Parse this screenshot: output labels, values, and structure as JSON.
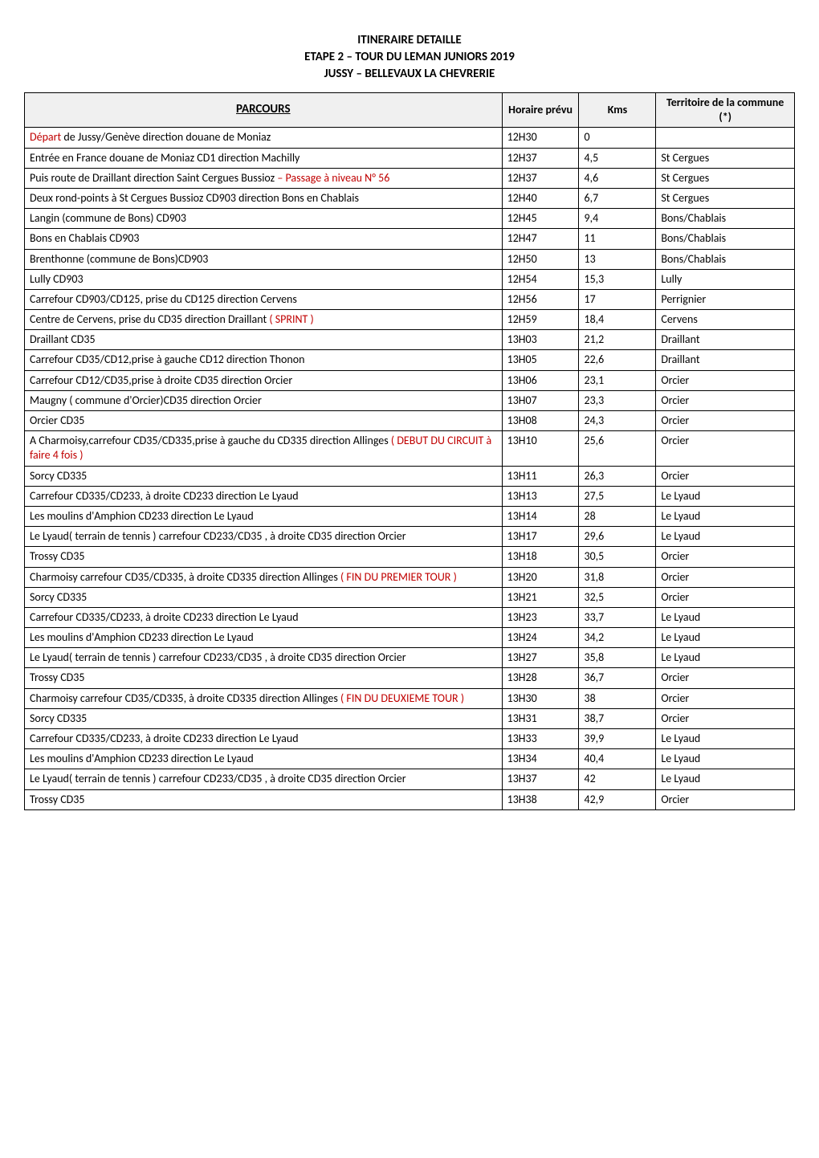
{
  "header": {
    "line1": "ITINERAIRE  DETAILLE",
    "line2": "ETAPE 2 – TOUR DU LEMAN JUNIORS 2019",
    "line3": "JUSSY – BELLEVAUX LA CHEVRERIE"
  },
  "columns": {
    "parcours": "PARCOURS",
    "horaire": "Horaire prévu",
    "kms": "Kms",
    "commune": "Territoire de la commune (*)"
  },
  "rows": [
    {
      "parcours_pre": "Départ",
      "parcours_pre_red": true,
      "parcours_rest": " de Jussy/Genève direction douane de Moniaz",
      "horaire": "12H30",
      "kms": "0",
      "commune": ""
    },
    {
      "parcours_pre": "Entrée en France douane de Moniaz CD1 direction Machilly",
      "horaire": "12H37",
      "kms": "4,5",
      "commune": "St Cergues"
    },
    {
      "parcours_pre": "Puis route de Draillant direction Saint Cergues Bussioz",
      "parcours_suffix": " – Passage à niveau N° 56",
      "suffix_red": true,
      "horaire": "12H37",
      "kms": "4,6",
      "commune": "St Cergues"
    },
    {
      "parcours_pre": "Deux rond-points à St Cergues Bussioz CD903 direction Bons en Chablais",
      "horaire": "12H40",
      "kms": "6,7",
      "commune": "St Cergues"
    },
    {
      "parcours_pre": "Langin (commune de Bons) CD903",
      "horaire": "12H45",
      "kms": "9,4",
      "commune": "Bons/Chablais"
    },
    {
      "parcours_pre": "Bons en Chablais CD903",
      "horaire": "12H47",
      "kms": "11",
      "commune": "Bons/Chablais"
    },
    {
      "parcours_pre": "Brenthonne (commune de Bons)CD903",
      "horaire": "12H50",
      "kms": "13",
      "commune": "Bons/Chablais"
    },
    {
      "parcours_pre": "Lully CD903",
      "horaire": "12H54",
      "kms": "15,3",
      "commune": "Lully"
    },
    {
      "parcours_pre": "Carrefour CD903/CD125, prise du CD125 direction Cervens",
      "horaire": "12H56",
      "kms": "17",
      "commune": "Perrignier"
    },
    {
      "parcours_pre": "Centre de Cervens, prise du CD35 direction Draillant ",
      "parcours_suffix": "( SPRINT )",
      "suffix_red": true,
      "horaire": "12H59",
      "kms": "18,4",
      "commune": "Cervens"
    },
    {
      "parcours_pre": "Draillant CD35",
      "horaire": "13H03",
      "kms": "21,2",
      "commune": "Draillant"
    },
    {
      "parcours_pre": "Carrefour CD35/CD12,prise à gauche CD12 direction  Thonon",
      "horaire": "13H05",
      "kms": "22,6",
      "commune": "Draillant"
    },
    {
      "parcours_pre": "Carrefour CD12/CD35,prise à droite CD35 direction Orcier",
      "horaire": "13H06",
      "kms": "23,1",
      "commune": "Orcier"
    },
    {
      "parcours_pre": "Maugny ( commune d'Orcier)CD35 direction Orcier",
      "horaire": "13H07",
      "kms": "23,3",
      "commune": "Orcier"
    },
    {
      "parcours_pre": "Orcier CD35",
      "horaire": "13H08",
      "kms": "24,3",
      "commune": "Orcier"
    },
    {
      "parcours_pre": "A Charmoisy,carrefour CD35/CD335,prise à gauche du CD335 direction Allinges ",
      "parcours_suffix": "( DEBUT DU CIRCUIT  à faire 4 fois )",
      "suffix_red": true,
      "horaire": "13H10",
      "kms": "25,6",
      "commune": "Orcier"
    },
    {
      "parcours_pre": "Sorcy CD335",
      "horaire": "13H11",
      "kms": "26,3",
      "commune": "Orcier"
    },
    {
      "parcours_pre": "Carrefour CD335/CD233, à droite CD233 direction Le Lyaud",
      "horaire": "13H13",
      "kms": "27,5",
      "commune": "Le Lyaud"
    },
    {
      "parcours_pre": "Les moulins d'Amphion CD233 direction Le Lyaud",
      "horaire": "13H14",
      "kms": "28",
      "commune": "Le Lyaud"
    },
    {
      "parcours_pre": "Le Lyaud( terrain de tennis ) carrefour CD233/CD35 , à droite CD35 direction Orcier",
      "horaire": "13H17",
      "kms": "29,6",
      "commune": "Le Lyaud"
    },
    {
      "parcours_pre": "Trossy CD35",
      "horaire": "13H18",
      "kms": "30,5",
      "commune": "Orcier"
    },
    {
      "parcours_pre": "Charmoisy carrefour CD35/CD335, à droite CD335 direction Allinges ",
      "parcours_suffix": "( FIN DU PREMIER TOUR  )",
      "suffix_red": true,
      "horaire": "13H20",
      "kms": "31,8",
      "commune": "Orcier"
    },
    {
      "parcours_pre": "Sorcy CD335",
      "horaire": "13H21",
      "kms": "32,5",
      "commune": "Orcier"
    },
    {
      "parcours_pre": "Carrefour CD335/CD233, à droite CD233 direction Le Lyaud",
      "horaire": "13H23",
      "kms": "33,7",
      "commune": "Le Lyaud"
    },
    {
      "parcours_pre": "Les moulins d'Amphion CD233 direction Le Lyaud",
      "horaire": "13H24",
      "kms": "34,2",
      "commune": "Le Lyaud"
    },
    {
      "parcours_pre": "Le Lyaud( terrain de tennis ) carrefour CD233/CD35 , à droite CD35 direction Orcier",
      "horaire": "13H27",
      "kms": "35,8",
      "commune": "Le Lyaud"
    },
    {
      "parcours_pre": "Trossy CD35",
      "horaire": "13H28",
      "kms": "36,7",
      "commune": "Orcier"
    },
    {
      "parcours_pre": "Charmoisy carrefour CD35/CD335, à droite CD335 direction Allinges ",
      "parcours_suffix": "( FIN DU DEUXIEME TOUR )",
      "suffix_red": true,
      "horaire": "13H30",
      "kms": "38",
      "commune": "Orcier"
    },
    {
      "parcours_pre": "Sorcy CD335",
      "horaire": "13H31",
      "kms": "38,7",
      "commune": "Orcier"
    },
    {
      "parcours_pre": "Carrefour CD335/CD233, à droite CD233 direction Le Lyaud",
      "horaire": "13H33",
      "kms": "39,9",
      "commune": "Le Lyaud"
    },
    {
      "parcours_pre": "Les moulins d'Amphion CD233 direction Le Lyaud",
      "horaire": "13H34",
      "kms": "40,4",
      "commune": "Le Lyaud"
    },
    {
      "parcours_pre": "Le Lyaud( terrain de tennis ) carrefour CD233/CD35 , à droite CD35 direction Orcier",
      "horaire": "13H37",
      "kms": "42",
      "commune": "Le Lyaud"
    },
    {
      "parcours_pre": "Trossy CD35",
      "horaire": "13H38",
      "kms": "42,9",
      "commune": "Orcier"
    }
  ],
  "styling": {
    "red_color": "#c00000",
    "border_color": "#000000",
    "header_bg": "#f0f0f0",
    "body_font": "Calibri, Arial, sans-serif",
    "body_font_size": 14,
    "header_font_size": 15
  }
}
